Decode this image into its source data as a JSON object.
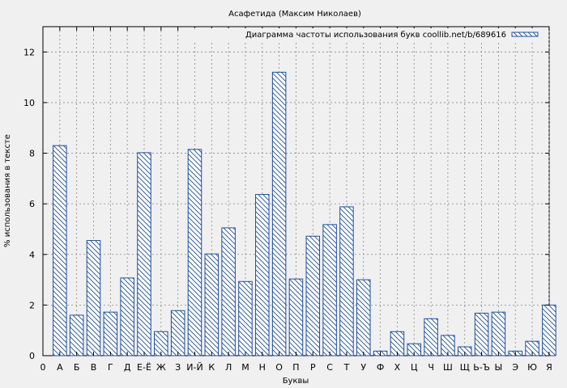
{
  "chart_data": {
    "type": "bar",
    "title": "Асафетида (Максим Николаев)",
    "xlabel": "Буквы",
    "ylabel": "% использования в тексте",
    "legend": {
      "label": "Диаграмма частоты использования букв coollib.net/b/689616",
      "placement": "top-right"
    },
    "x_tick_labels": [
      "0",
      "А",
      "Б",
      "В",
      "Г",
      "Д",
      "Е-Ё",
      "Ж",
      "З",
      "И-Й",
      "К",
      "Л",
      "М",
      "Н",
      "О",
      "П",
      "Р",
      "С",
      "Т",
      "У",
      "Ф",
      "Х",
      "Ц",
      "Ч",
      "Ш",
      "Щ",
      "Ь-Ъ",
      "Ы",
      "Э",
      "Ю",
      "Я"
    ],
    "categories": [
      "А",
      "Б",
      "В",
      "Г",
      "Д",
      "Е-Ё",
      "Ж",
      "З",
      "И-Й",
      "К",
      "Л",
      "М",
      "Н",
      "О",
      "П",
      "Р",
      "С",
      "Т",
      "У",
      "Ф",
      "Х",
      "Ц",
      "Ч",
      "Ш",
      "Щ",
      "Ь-Ъ",
      "Ы",
      "Э",
      "Ю",
      "Я"
    ],
    "values": [
      8.3,
      1.6,
      4.55,
      1.72,
      3.07,
      8.02,
      0.95,
      1.78,
      8.15,
      4.02,
      5.05,
      2.93,
      6.37,
      11.2,
      3.03,
      4.72,
      5.18,
      5.88,
      3.0,
      0.18,
      0.95,
      0.47,
      1.46,
      0.8,
      0.35,
      1.68,
      1.72,
      0.18,
      0.57,
      2.0
    ],
    "ylim": [
      0,
      13
    ],
    "y_ticks": [
      0,
      2,
      4,
      6,
      8,
      10,
      12
    ],
    "grid": true,
    "colors": {
      "bar_stroke": "#1f4e9c",
      "bar_fill": "#ffffff",
      "background": "#f0f0f0",
      "grid": "#888888"
    }
  }
}
